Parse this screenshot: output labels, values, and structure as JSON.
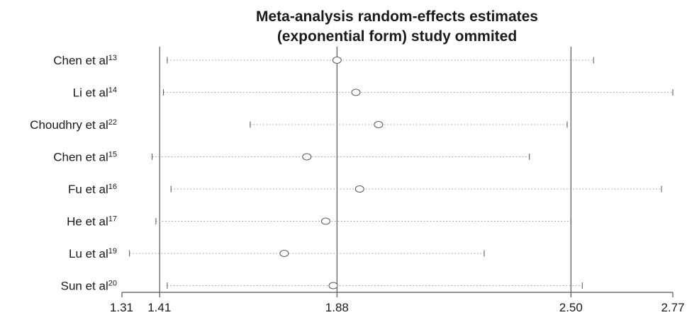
{
  "chart_data": {
    "type": "forest",
    "title": [
      "Meta-analysis random-effects estimates",
      "(exponential form) study ommited"
    ],
    "xlim": [
      1.31,
      2.77
    ],
    "xticks": [
      "1.31",
      "1.41",
      "1.88",
      "2.50",
      "2.77"
    ],
    "reference_lines": [
      1.41,
      1.88,
      2.5
    ],
    "studies": [
      {
        "name": "Chen et al",
        "ref": "13",
        "estimate": 1.88,
        "lower": 1.43,
        "upper": 2.56
      },
      {
        "name": "Li et al",
        "ref": "14",
        "estimate": 1.93,
        "lower": 1.42,
        "upper": 2.77
      },
      {
        "name": "Choudhry et al",
        "ref": "22",
        "estimate": 1.99,
        "lower": 1.65,
        "upper": 2.49
      },
      {
        "name": "Chen et al",
        "ref": "15",
        "estimate": 1.8,
        "lower": 1.39,
        "upper": 2.39
      },
      {
        "name": "Fu et al",
        "ref": "16",
        "estimate": 1.94,
        "lower": 1.44,
        "upper": 2.74
      },
      {
        "name": "He et al",
        "ref": "17",
        "estimate": 1.85,
        "lower": 1.4,
        "upper": 2.5
      },
      {
        "name": "Lu et al",
        "ref": "19",
        "estimate": 1.74,
        "lower": 1.33,
        "upper": 2.27
      },
      {
        "name": "Sun et al",
        "ref": "20",
        "estimate": 1.87,
        "lower": 1.43,
        "upper": 2.53
      }
    ],
    "grid": false,
    "colors": {
      "axis": "#555555",
      "ci_line": "#9a9a9a",
      "marker": "#555555",
      "text": "#1a1a1a"
    }
  }
}
